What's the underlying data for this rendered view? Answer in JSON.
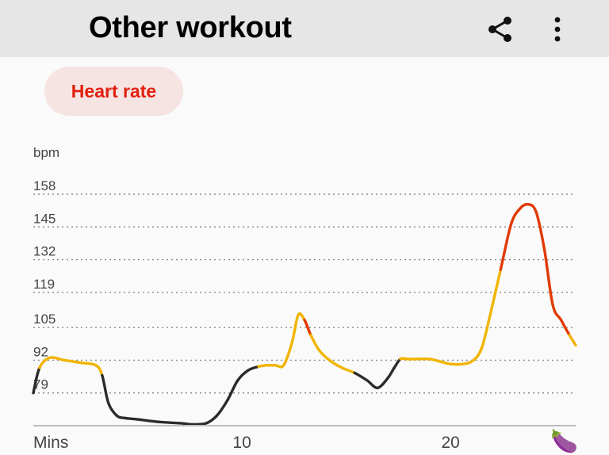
{
  "header": {
    "title": "Other workout",
    "share_icon": "share-icon",
    "more_icon": "more-vert-icon"
  },
  "metric_chip": {
    "label": "Heart rate",
    "selected": true,
    "text_color": "#e0200f",
    "bg_color": "#f6e4e2"
  },
  "chart_data": {
    "type": "line",
    "title": "",
    "ylabel": "bpm",
    "xlabel": "Mins",
    "ylim": [
      66,
      158
    ],
    "xlim": [
      0,
      26
    ],
    "y_ticks": [
      "158",
      "145",
      "132",
      "119",
      "105",
      "92",
      "79"
    ],
    "x_ticks": [
      {
        "value": 10,
        "label": "10"
      },
      {
        "value": 20,
        "label": "20"
      }
    ],
    "grid": "dotted horizontal",
    "zone_colors": {
      "low": "#2b2b2b",
      "moderate": "#f1b400",
      "high": "#e03a00"
    },
    "series": [
      {
        "x": [
          0,
          0.3,
          0.8,
          1.5,
          2.3,
          3,
          3.3,
          3.6,
          4,
          4.4,
          5,
          6,
          7,
          7.7,
          8.3,
          8.8,
          9.3,
          9.8,
          10.3,
          10.8,
          11.2,
          11.6,
          12,
          12.4,
          12.7,
          13,
          13.3,
          13.7,
          14.2,
          14.8,
          15.4,
          16,
          16.5,
          17,
          17.3,
          17.6,
          17.9,
          18.3,
          19,
          19.5,
          20,
          20.6,
          21.1,
          21.5,
          21.9,
          22.4,
          22.9,
          23.3,
          23.7,
          24.1,
          24.5,
          24.9,
          25.3,
          25.7,
          26
        ],
        "y": [
          79,
          89,
          93,
          92,
          91,
          90,
          86,
          75,
          70,
          69,
          68.5,
          67.5,
          67,
          66.5,
          67,
          70,
          76,
          84,
          88,
          89.5,
          90,
          90,
          90,
          99,
          110,
          108,
          102,
          96,
          92,
          89,
          87,
          84,
          81,
          85,
          89,
          92.5,
          92.5,
          92.5,
          92.5,
          91.5,
          90.5,
          90.5,
          92,
          97,
          110,
          128,
          146,
          152,
          154,
          151,
          136,
          114,
          108,
          102,
          98
        ],
        "zones": [
          "low",
          "moderate",
          "moderate",
          "moderate",
          "moderate",
          "moderate",
          "low",
          "low",
          "low",
          "low",
          "low",
          "low",
          "low",
          "low",
          "low",
          "low",
          "low",
          "low",
          "low",
          "moderate",
          "moderate",
          "moderate",
          "moderate",
          "moderate",
          "moderate",
          "high",
          "moderate",
          "moderate",
          "moderate",
          "moderate",
          "low",
          "low",
          "low",
          "low",
          "low",
          "moderate",
          "moderate",
          "moderate",
          "moderate",
          "moderate",
          "moderate",
          "moderate",
          "moderate",
          "moderate",
          "moderate",
          "high",
          "high",
          "high",
          "high",
          "high",
          "high",
          "high",
          "high",
          "moderate",
          "moderate"
        ]
      }
    ],
    "end_marker": "eggplant-icon"
  }
}
